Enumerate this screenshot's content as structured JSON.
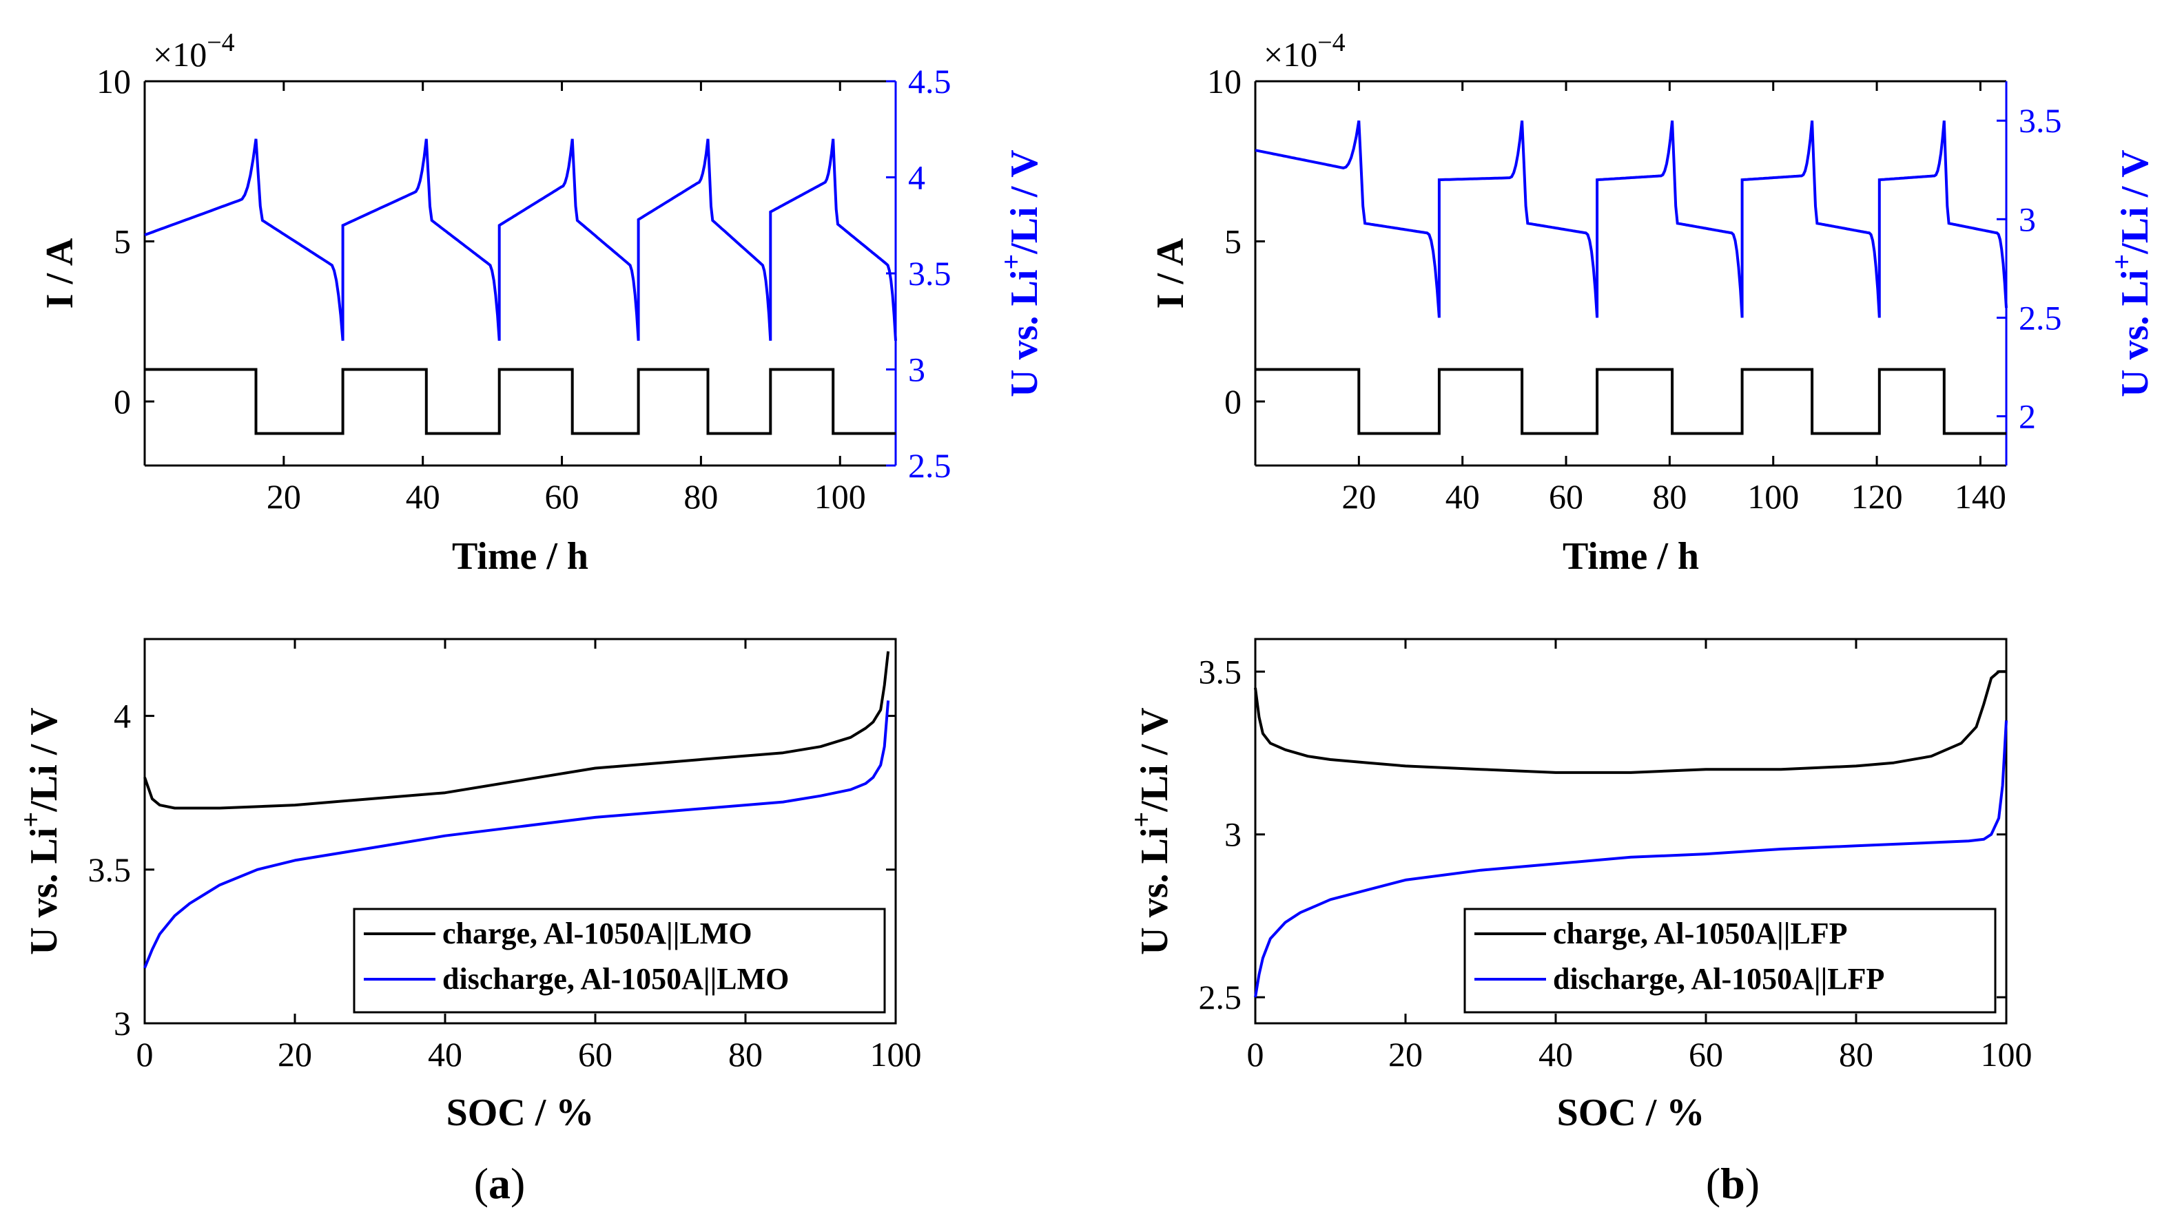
{
  "panels": [
    {
      "label": "(a)",
      "label_letter": "a",
      "chart_data": [
        {
          "type": "line",
          "title": "",
          "xlabel": "Time / h",
          "ylabel_left": "I / A",
          "ylabel_right_parts": [
            "U vs. Li",
            "+",
            "/Li / V"
          ],
          "exponent_label": "×10",
          "exponent_power": "−4",
          "xlim": [
            0,
            108
          ],
          "ylim_left": [
            -2,
            10
          ],
          "ylim_right": [
            2.5,
            4.5
          ],
          "xticks": [
            20,
            40,
            60,
            80,
            100
          ],
          "yticks_left": [
            0,
            5,
            10
          ],
          "yticks_right": [
            2.5,
            3,
            3.5,
            4,
            4.5
          ],
          "grid": false,
          "current_segments": [
            {
              "t_start": 0,
              "t_end": 16,
              "value": 1
            },
            {
              "t_start": 16,
              "t_end": 28.5,
              "value": -1
            },
            {
              "t_start": 28.5,
              "t_end": 40.5,
              "value": 1
            },
            {
              "t_start": 40.5,
              "t_end": 51,
              "value": -1
            },
            {
              "t_start": 51,
              "t_end": 61.5,
              "value": 1
            },
            {
              "t_start": 61.5,
              "t_end": 71,
              "value": -1
            },
            {
              "t_start": 71,
              "t_end": 81,
              "value": 1
            },
            {
              "t_start": 81,
              "t_end": 90,
              "value": -1
            },
            {
              "t_start": 90,
              "t_end": 99,
              "value": 1
            },
            {
              "t_start": 99,
              "t_end": 108,
              "value": -1
            }
          ],
          "voltage_cycles": [
            {
              "ch_start": 0,
              "ch_end": 16,
              "v_start": 3.7,
              "v_mid": 3.88,
              "v_peak": 4.2,
              "dis_end": 28.5,
              "v_dis_start": 3.78,
              "v_dis_mid": 3.55,
              "v_dis_end": 3.15
            },
            {
              "ch_start": 28.5,
              "ch_end": 40.5,
              "v_start": 3.75,
              "v_mid": 3.92,
              "v_peak": 4.2,
              "dis_end": 51,
              "v_dis_start": 3.78,
              "v_dis_mid": 3.55,
              "v_dis_end": 3.15
            },
            {
              "ch_start": 51,
              "ch_end": 61.5,
              "v_start": 3.75,
              "v_mid": 3.95,
              "v_peak": 4.2,
              "dis_end": 71,
              "v_dis_start": 3.78,
              "v_dis_mid": 3.55,
              "v_dis_end": 3.15
            },
            {
              "ch_start": 71,
              "ch_end": 81,
              "v_start": 3.78,
              "v_mid": 3.97,
              "v_peak": 4.2,
              "dis_end": 90,
              "v_dis_start": 3.78,
              "v_dis_mid": 3.55,
              "v_dis_end": 3.15
            },
            {
              "ch_start": 90,
              "ch_end": 99,
              "v_start": 3.82,
              "v_mid": 3.97,
              "v_peak": 4.2,
              "dis_end": 108,
              "v_dis_start": 3.76,
              "v_dis_mid": 3.55,
              "v_dis_end": 3.15
            }
          ],
          "series": [
            {
              "name": "",
              "axis": "left",
              "color": "#000000"
            },
            {
              "name": "",
              "axis": "right",
              "color": "#0000ff"
            }
          ]
        },
        {
          "type": "line",
          "title": "",
          "xlabel": "SOC / %",
          "ylabel_parts": [
            "U vs. Li",
            "+",
            "/Li / V"
          ],
          "xlim": [
            0,
            100
          ],
          "ylim": [
            3,
            4.25
          ],
          "xticks": [
            0,
            20,
            40,
            60,
            80,
            100
          ],
          "yticks": [
            3,
            3.5,
            4
          ],
          "legend_position": "bottom-right",
          "grid": false,
          "series": [
            {
              "name": "charge, Al-1050A||LMO",
              "color": "#000000",
              "x": [
                0,
                1,
                2,
                4,
                7,
                10,
                20,
                30,
                40,
                50,
                60,
                70,
                80,
                85,
                90,
                94,
                96,
                97,
                98,
                98.5,
                99
              ],
              "y": [
                3.8,
                3.73,
                3.71,
                3.7,
                3.7,
                3.7,
                3.71,
                3.73,
                3.75,
                3.79,
                3.83,
                3.85,
                3.87,
                3.88,
                3.9,
                3.93,
                3.96,
                3.98,
                4.02,
                4.1,
                4.21
              ]
            },
            {
              "name": "discharge, Al-1050A||LMO",
              "color": "#0000ff",
              "x": [
                0,
                1,
                2,
                4,
                6,
                8,
                10,
                15,
                20,
                30,
                40,
                50,
                60,
                70,
                80,
                85,
                90,
                94,
                96,
                97,
                98,
                98.5,
                99
              ],
              "y": [
                3.18,
                3.24,
                3.29,
                3.35,
                3.39,
                3.42,
                3.45,
                3.5,
                3.53,
                3.57,
                3.61,
                3.64,
                3.67,
                3.69,
                3.71,
                3.72,
                3.74,
                3.76,
                3.78,
                3.8,
                3.84,
                3.9,
                4.05
              ]
            }
          ]
        }
      ]
    },
    {
      "label": "(b)",
      "label_letter": "b",
      "chart_data": [
        {
          "type": "line",
          "title": "",
          "xlabel": "Time / h",
          "ylabel_left": "I / A",
          "ylabel_right_parts": [
            "U vs. Li",
            "+",
            "/Li / V"
          ],
          "exponent_label": "×10",
          "exponent_power": "−4",
          "xlim": [
            0,
            145
          ],
          "ylim_left": [
            -2,
            10
          ],
          "ylim_right": [
            1.75,
            3.7
          ],
          "xticks": [
            20,
            40,
            60,
            80,
            100,
            120,
            140
          ],
          "yticks_left": [
            0,
            5,
            10
          ],
          "yticks_right": [
            2,
            2.5,
            3,
            3.5
          ],
          "grid": false,
          "current_segments": [
            {
              "t_start": 0,
              "t_end": 20,
              "value": 1
            },
            {
              "t_start": 20,
              "t_end": 35.5,
              "value": -1
            },
            {
              "t_start": 35.5,
              "t_end": 51.5,
              "value": 1
            },
            {
              "t_start": 51.5,
              "t_end": 66,
              "value": -1
            },
            {
              "t_start": 66,
              "t_end": 80.5,
              "value": 1
            },
            {
              "t_start": 80.5,
              "t_end": 94,
              "value": -1
            },
            {
              "t_start": 94,
              "t_end": 107.5,
              "value": 1
            },
            {
              "t_start": 107.5,
              "t_end": 120.5,
              "value": -1
            },
            {
              "t_start": 120.5,
              "t_end": 133,
              "value": 1
            },
            {
              "t_start": 133,
              "t_end": 145,
              "value": -1
            }
          ],
          "voltage_cycles": [
            {
              "ch_start": 0,
              "ch_end": 20,
              "v_start": 3.35,
              "v_mid": 3.26,
              "v_peak": 3.5,
              "dis_end": 35.5,
              "v_dis_start": 2.98,
              "v_dis_mid": 2.93,
              "v_dis_end": 2.5
            },
            {
              "ch_start": 35.5,
              "ch_end": 51.5,
              "v_start": 3.2,
              "v_mid": 3.21,
              "v_peak": 3.5,
              "dis_end": 66,
              "v_dis_start": 2.98,
              "v_dis_mid": 2.93,
              "v_dis_end": 2.5
            },
            {
              "ch_start": 66,
              "ch_end": 80.5,
              "v_start": 3.2,
              "v_mid": 3.22,
              "v_peak": 3.5,
              "dis_end": 94,
              "v_dis_start": 2.98,
              "v_dis_mid": 2.93,
              "v_dis_end": 2.5
            },
            {
              "ch_start": 94,
              "ch_end": 107.5,
              "v_start": 3.2,
              "v_mid": 3.22,
              "v_peak": 3.5,
              "dis_end": 120.5,
              "v_dis_start": 2.98,
              "v_dis_mid": 2.93,
              "v_dis_end": 2.5
            },
            {
              "ch_start": 120.5,
              "ch_end": 133,
              "v_start": 3.2,
              "v_mid": 3.22,
              "v_peak": 3.5,
              "dis_end": 145,
              "v_dis_start": 2.98,
              "v_dis_mid": 2.93,
              "v_dis_end": 2.55
            }
          ],
          "series": [
            {
              "name": "",
              "axis": "left",
              "color": "#000000"
            },
            {
              "name": "",
              "axis": "right",
              "color": "#0000ff"
            }
          ]
        },
        {
          "type": "line",
          "title": "",
          "xlabel": "SOC / %",
          "ylabel_parts": [
            "U vs. Li",
            "+",
            "/Li / V"
          ],
          "xlim": [
            0,
            100
          ],
          "ylim": [
            2.42,
            3.6
          ],
          "xticks": [
            0,
            20,
            40,
            60,
            80,
            100
          ],
          "yticks": [
            2.5,
            3,
            3.5
          ],
          "legend_position": "bottom-right",
          "grid": false,
          "series": [
            {
              "name": "charge, Al-1050A||LFP",
              "color": "#000000",
              "x": [
                0,
                0.5,
                1,
                2,
                4,
                7,
                10,
                15,
                20,
                30,
                40,
                50,
                60,
                70,
                80,
                85,
                90,
                94,
                96,
                97,
                98,
                99,
                100
              ],
              "y": [
                3.45,
                3.36,
                3.31,
                3.28,
                3.26,
                3.24,
                3.23,
                3.22,
                3.21,
                3.2,
                3.19,
                3.19,
                3.2,
                3.2,
                3.21,
                3.22,
                3.24,
                3.28,
                3.33,
                3.4,
                3.48,
                3.5,
                3.5
              ]
            },
            {
              "name": "discharge, Al-1050A||LFP",
              "color": "#0000ff",
              "x": [
                0,
                0.5,
                1,
                2,
                4,
                6,
                8,
                10,
                15,
                20,
                30,
                40,
                50,
                60,
                70,
                80,
                90,
                95,
                97,
                98,
                99,
                99.5,
                100
              ],
              "y": [
                2.5,
                2.57,
                2.62,
                2.68,
                2.73,
                2.76,
                2.78,
                2.8,
                2.83,
                2.86,
                2.89,
                2.91,
                2.93,
                2.94,
                2.955,
                2.965,
                2.975,
                2.98,
                2.985,
                3.0,
                3.05,
                3.15,
                3.35
              ]
            }
          ]
        }
      ]
    }
  ]
}
